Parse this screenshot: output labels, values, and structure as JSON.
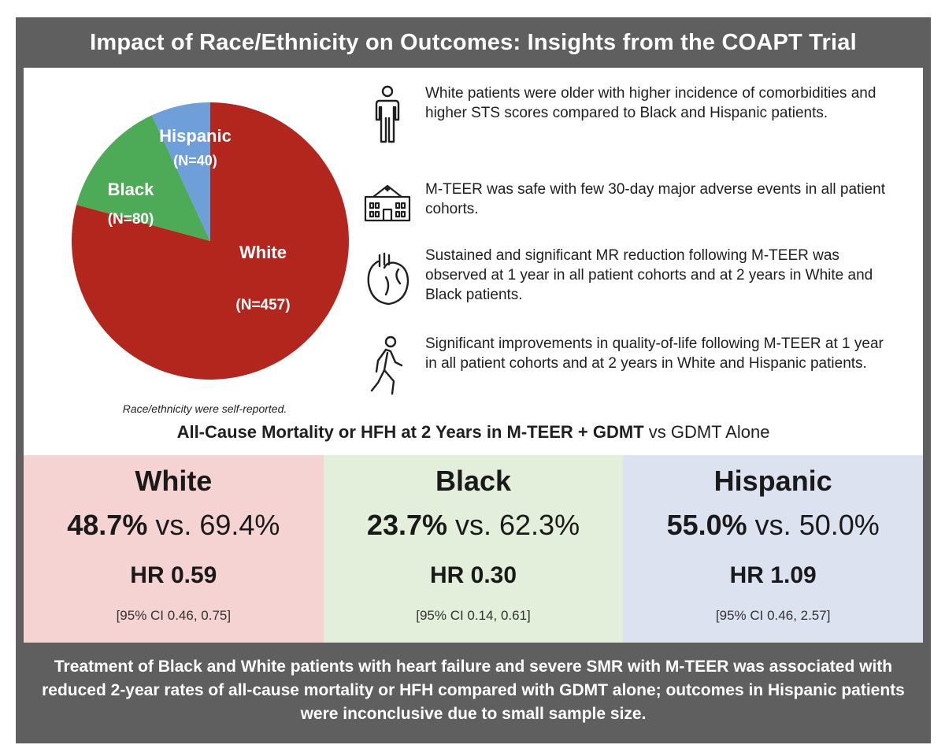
{
  "title": "Impact of Race/Ethnicity on Outcomes: Insights from the COAPT Trial",
  "chart_data": {
    "type": "pie",
    "title": "",
    "slices": [
      {
        "name": "White",
        "label": "White",
        "n_label": "(N=457)",
        "value": 457,
        "color": "#b3261e"
      },
      {
        "name": "Black",
        "label": "Black",
        "n_label": "(N=80)",
        "value": 80,
        "color": "#4daa57"
      },
      {
        "name": "Hispanic",
        "label": "Hispanic",
        "n_label": "(N=40)",
        "value": 40,
        "color": "#6f9fd8"
      }
    ]
  },
  "note": "Race/ethnicity were self-reported.",
  "insights": [
    {
      "icon": "person-icon",
      "text": "White patients were older with higher incidence of comorbidities and higher STS scores compared to Black and Hispanic patients."
    },
    {
      "icon": "hospital-icon",
      "text": "M-TEER was safe with few 30-day major adverse events in all patient cohorts."
    },
    {
      "icon": "heart-icon",
      "text": "Sustained and significant MR reduction following M-TEER was observed at 1 year in all patient cohorts and at 2 years in White and Black patients."
    },
    {
      "icon": "walking-person-icon",
      "text": "Significant improvements in quality-of-life following M-TEER at 1 year in all patient cohorts and at 2 years in White and Hispanic patients."
    }
  ],
  "outcome_heading": {
    "bold": "All-Cause Mortality or HFH at 2 Years in M-TEER + GDMT",
    "normal": " vs GDMT Alone"
  },
  "cohorts": [
    {
      "name": "White",
      "rate_mteer": "48.7%",
      "vs": " vs. ",
      "rate_gdmt": "69.4%",
      "hr": "HR 0.59",
      "ci": "[95% CI 0.46, 0.75]",
      "bg": "#f5d3d3"
    },
    {
      "name": "Black",
      "rate_mteer": "23.7%",
      "vs": " vs. ",
      "rate_gdmt": "62.3%",
      "hr": "HR 0.30",
      "ci": "[95% CI 0.14, 0.61]",
      "bg": "#e3eedb"
    },
    {
      "name": "Hispanic",
      "rate_mteer": "55.0%",
      "vs": " vs. ",
      "rate_gdmt": "50.0%",
      "hr": "HR 1.09",
      "ci": "[95% CI 0.46, 2.57]",
      "bg": "#dde2f1"
    }
  ],
  "conclusion": "Treatment of Black and White patients with heart failure and severe SMR with M-TEER was associated with reduced 2-year rates of all-cause mortality or HFH compared with GDMT alone; outcomes in Hispanic patients were inconclusive due to small sample size."
}
